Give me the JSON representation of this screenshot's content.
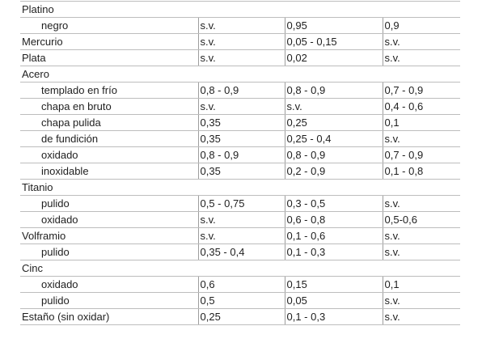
{
  "table": {
    "rows": [
      {
        "material": "Platino",
        "indent": false,
        "header": true,
        "values": []
      },
      {
        "material": "negro",
        "indent": true,
        "header": false,
        "values": [
          "s.v.",
          "0,95",
          "0,9"
        ]
      },
      {
        "material": "Mercurio",
        "indent": false,
        "header": false,
        "values": [
          "s.v.",
          "0,05 - 0,15",
          "s.v."
        ]
      },
      {
        "material": "Plata",
        "indent": false,
        "header": false,
        "values": [
          "s.v.",
          "0,02",
          "s.v."
        ]
      },
      {
        "material": "Acero",
        "indent": false,
        "header": true,
        "values": []
      },
      {
        "material": "templado en frío",
        "indent": true,
        "header": false,
        "values": [
          "0,8 - 0,9",
          "0,8 - 0,9",
          "0,7 - 0,9"
        ]
      },
      {
        "material": "chapa en bruto",
        "indent": true,
        "header": false,
        "values": [
          "s.v.",
          "s.v.",
          "0,4 - 0,6"
        ]
      },
      {
        "material": "chapa pulida",
        "indent": true,
        "header": false,
        "values": [
          "0,35",
          "0,25",
          "0,1"
        ]
      },
      {
        "material": "de fundición",
        "indent": true,
        "header": false,
        "values": [
          "0,35",
          "0,25 - 0,4",
          "s.v."
        ]
      },
      {
        "material": "oxidado",
        "indent": true,
        "header": false,
        "values": [
          "0,8 - 0,9",
          "0,8 - 0,9",
          "0,7 - 0,9"
        ]
      },
      {
        "material": "inoxidable",
        "indent": true,
        "header": false,
        "values": [
          "0,35",
          "0,2 - 0,9",
          "0,1 - 0,8"
        ]
      },
      {
        "material": "Titanio",
        "indent": false,
        "header": true,
        "values": []
      },
      {
        "material": "pulido",
        "indent": true,
        "header": false,
        "values": [
          "0,5 - 0,75",
          "0,3 - 0,5",
          "s.v."
        ]
      },
      {
        "material": "oxidado",
        "indent": true,
        "header": false,
        "values": [
          "s.v.",
          "0,6 - 0,8",
          "0,5-0,6"
        ]
      },
      {
        "material": "Volframio",
        "indent": false,
        "header": false,
        "values": [
          "s.v.",
          "0,1 - 0,6",
          "s.v."
        ]
      },
      {
        "material": "pulido",
        "indent": true,
        "header": false,
        "values": [
          "0,35 - 0,4",
          "0,1 - 0,3",
          "s.v."
        ]
      },
      {
        "material": "Cinc",
        "indent": false,
        "header": true,
        "values": []
      },
      {
        "material": "oxidado",
        "indent": true,
        "header": false,
        "values": [
          "0,6",
          "0,15",
          "0,1"
        ]
      },
      {
        "material": "pulido",
        "indent": true,
        "header": false,
        "values": [
          "0,5",
          "0,05",
          "s.v."
        ]
      },
      {
        "material": "Estaño (sin oxidar)",
        "indent": false,
        "header": false,
        "values": [
          "0,25",
          "0,1 - 0,3",
          "s.v."
        ]
      }
    ]
  }
}
